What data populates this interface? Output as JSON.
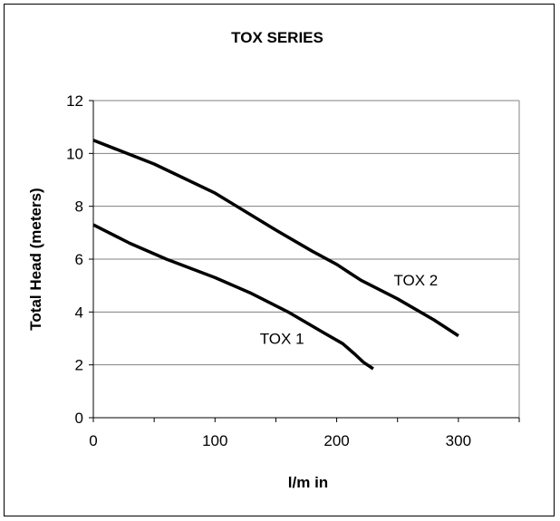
{
  "chart_data": {
    "type": "line",
    "title": "TOX SERIES",
    "xlabel": "l/m in",
    "ylabel": "Total Head (meters)",
    "xlim": [
      0,
      350
    ],
    "ylim": [
      0,
      12
    ],
    "x_ticks": [
      0,
      100,
      200,
      300
    ],
    "y_ticks": [
      0,
      2,
      4,
      6,
      8,
      10,
      12
    ],
    "grid": "horizontal",
    "legend": "none",
    "series": [
      {
        "name": "TOX 1",
        "x": [
          0,
          30,
          60,
          100,
          130,
          160,
          175,
          190,
          205,
          215,
          222,
          230
        ],
        "y": [
          7.3,
          6.6,
          6.0,
          5.3,
          4.7,
          4.0,
          3.6,
          3.2,
          2.8,
          2.4,
          2.1,
          1.85
        ]
      },
      {
        "name": "TOX 2",
        "x": [
          0,
          50,
          100,
          150,
          180,
          200,
          210,
          220,
          250,
          280,
          300
        ],
        "y": [
          10.5,
          9.6,
          8.5,
          7.1,
          6.3,
          5.8,
          5.5,
          5.2,
          4.5,
          3.7,
          3.1
        ]
      }
    ],
    "annotations": [
      {
        "text": "TOX 1",
        "x": 155,
        "y": 2.8
      },
      {
        "text": "TOX 2",
        "x": 265,
        "y": 5.0
      }
    ],
    "line_color": "#000000",
    "grid_color": "#808080"
  }
}
